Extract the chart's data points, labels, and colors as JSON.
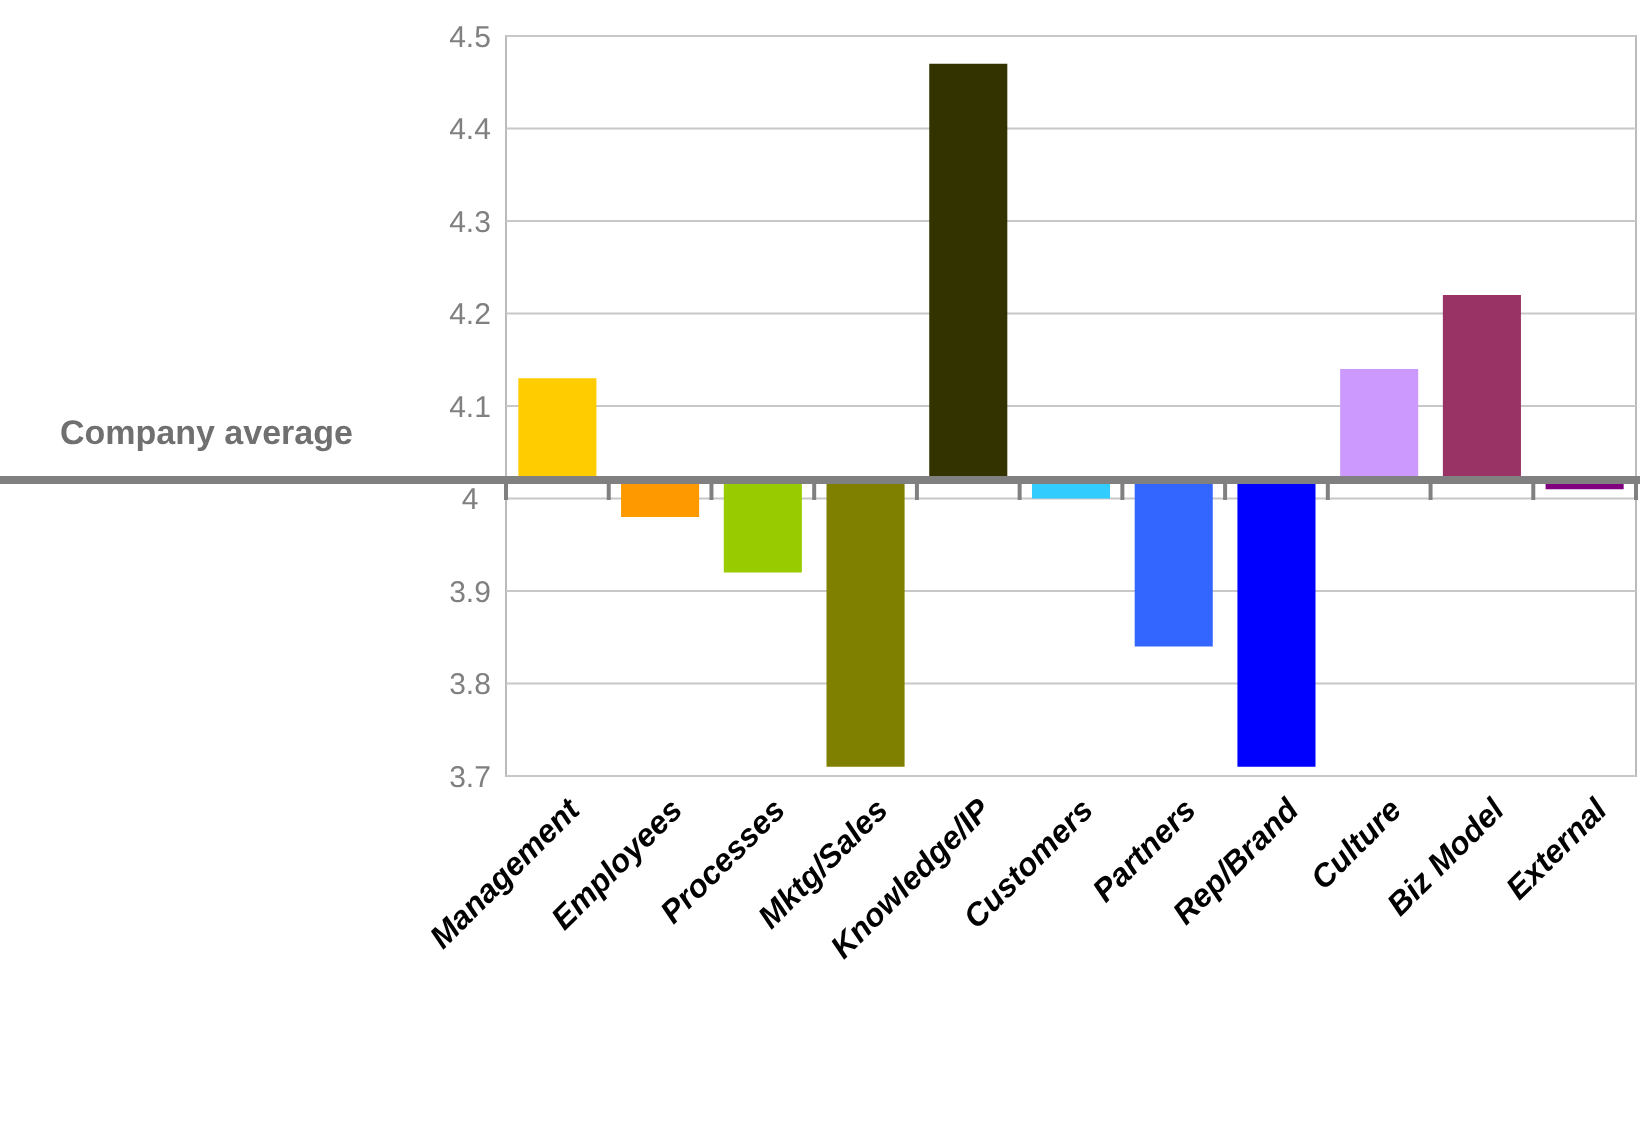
{
  "chart_data": {
    "type": "bar",
    "categories": [
      "Management",
      "Employees",
      "Processes",
      "Mktg/Sales",
      "Knowledge/IP",
      "Customers",
      "Partners",
      "Rep/Brand",
      "Culture",
      "Biz Model",
      "External"
    ],
    "base": [
      4.02,
      4.02,
      4.02,
      4.02,
      4.02,
      4.02,
      4.02,
      4.02,
      4.02,
      4.02,
      4.02
    ],
    "values": [
      0.11,
      -0.04,
      -0.1,
      -0.31,
      0.45,
      -0.02,
      -0.18,
      -0.31,
      0.12,
      0.2,
      -0.01
    ],
    "colors": [
      "#ffcc00",
      "#ff9900",
      "#99cc00",
      "#808000",
      "#333300",
      "#33ccff",
      "#3366ff",
      "#0000ff",
      "#cc99ff",
      "#993366",
      "#800080"
    ],
    "ylim": [
      3.7,
      4.5
    ],
    "yticks": [
      3.7,
      3.8,
      3.9,
      4,
      4.1,
      4.2,
      4.3,
      4.4,
      4.5
    ],
    "grid": "y",
    "ref_lines": [
      {
        "axis": "y",
        "value": 4.02,
        "label": "Company average",
        "color": "#808080"
      }
    ]
  }
}
